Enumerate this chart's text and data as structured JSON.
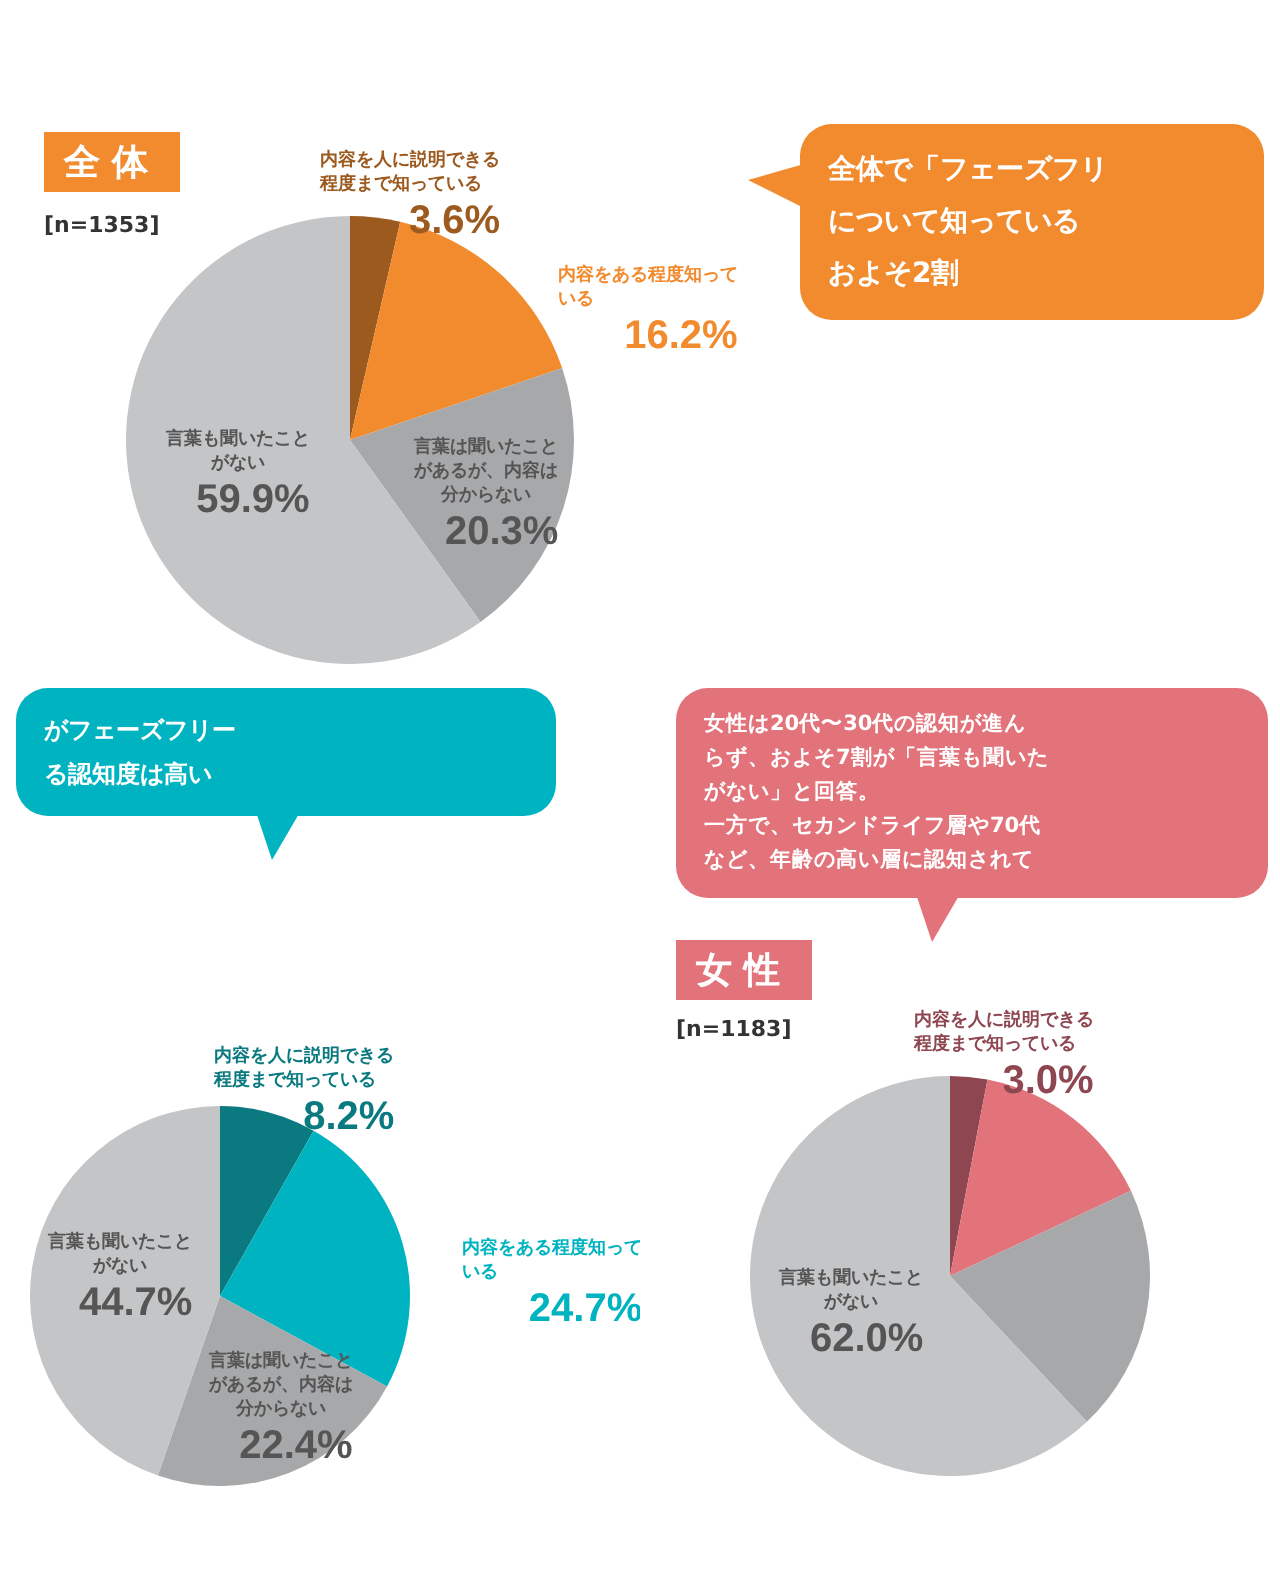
{
  "chart_data": [
    {
      "type": "pie",
      "title": "全体",
      "subtitle": "[n=1353]",
      "categories": [
        "内容を人に説明できる程度まで知っている",
        "内容をある程度知っている",
        "言葉は聞いたことがあるが、内容は分からない",
        "言葉も聞いたことがない"
      ],
      "values": [
        3.6,
        16.2,
        20.3,
        59.9
      ],
      "colors": [
        "#9c5a1e",
        "#f28a2e",
        "#a7a8aa",
        "#c4c5c7"
      ],
      "value_labels": [
        "3.6%",
        "16.2%",
        "20.3%",
        "59.9%"
      ],
      "annotations": [
        "全体で「フェーズフリ",
        "について知っている",
        "およそ2割"
      ]
    },
    {
      "type": "pie",
      "categories": [
        "内容を人に説明できる程度まで知っている",
        "内容をある程度知っている",
        "言葉は聞いたことがあるが、内容は分からない",
        "言葉も聞いたことがない"
      ],
      "values": [
        8.2,
        24.7,
        22.4,
        44.7
      ],
      "colors": [
        "#0b7a80",
        "#00b3c0",
        "#a7a8aa",
        "#c4c5c7"
      ],
      "value_labels": [
        "8.2%",
        "24.7%",
        "22.4%",
        "44.7%"
      ],
      "annotations": [
        "がフェーズフリー",
        "る認知度は高い"
      ]
    },
    {
      "type": "pie",
      "title": "女性",
      "subtitle": "[n=1183]",
      "categories": [
        "内容を人に説明できる程度まで知っている",
        null,
        null,
        "言葉も聞いたことがない"
      ],
      "values": [
        3.0,
        15,
        20,
        62.0
      ],
      "colors": [
        "#8e4650",
        "#e2737a",
        "#a7a8aa",
        "#c4c5c7"
      ],
      "value_labels": [
        "3.0%",
        null,
        null,
        "62.0%"
      ],
      "annotations": [
        "女性は20代〜30代の認知が進ん",
        "らず、およそ7割が「言葉も聞いた",
        "がない」と回答。",
        "一方で、セカンドライフ層や70代",
        "など、年齢の高い層に認知されて"
      ]
    }
  ]
}
